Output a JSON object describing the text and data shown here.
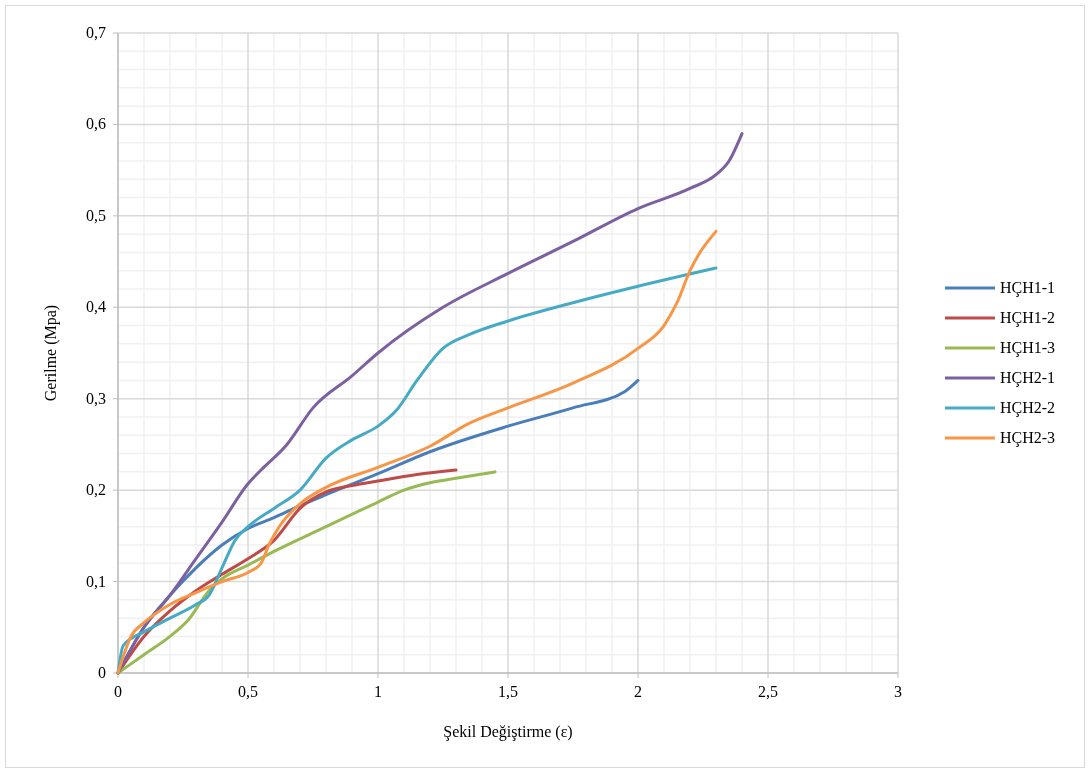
{
  "chart_data": {
    "type": "line",
    "xlabel": "Şekil Değiştirme (ε)",
    "ylabel": "Gerilme (Mpa)",
    "xlim": [
      0,
      3
    ],
    "xticks": [
      0,
      {
        "value": 0.5,
        "label": "0,5"
      },
      1,
      {
        "value": 1.5,
        "label": "1,5"
      },
      2,
      {
        "value": 2.5,
        "label": "2,5"
      },
      3
    ],
    "ylim": [
      0,
      0.7
    ],
    "yticks": [
      0,
      {
        "value": 0.1,
        "label": "0,1"
      },
      {
        "value": 0.2,
        "label": "0,2"
      },
      {
        "value": 0.3,
        "label": "0,3"
      },
      {
        "value": 0.4,
        "label": "0,4"
      },
      {
        "value": 0.5,
        "label": "0,5"
      },
      {
        "value": 0.6,
        "label": "0,6"
      },
      {
        "value": 0.7,
        "label": "0,7"
      }
    ],
    "grid": true,
    "legend": "right",
    "marker": "none",
    "line_style": "solid",
    "series": [
      {
        "name": "HÇH1-1",
        "color": "#4a7ebb",
        "x": [
          0,
          0.1,
          0.2,
          0.3,
          0.4,
          0.5,
          0.6,
          0.7,
          0.8,
          1,
          1.2,
          1.5,
          1.75,
          1.95,
          2
        ],
        "values": [
          0,
          0.05,
          0.085,
          0.115,
          0.14,
          0.158,
          0.17,
          0.183,
          0.195,
          0.218,
          0.242,
          0.27,
          0.29,
          0.308,
          0.32
        ]
      },
      {
        "name": "HÇH1-2",
        "color": "#be4b48",
        "x": [
          0,
          0.1,
          0.2,
          0.3,
          0.4,
          0.5,
          0.6,
          0.7,
          0.8,
          0.9,
          1,
          1.15,
          1.3
        ],
        "values": [
          0,
          0.04,
          0.068,
          0.09,
          0.108,
          0.125,
          0.145,
          0.18,
          0.198,
          0.205,
          0.21,
          0.217,
          0.222
        ]
      },
      {
        "name": "HÇH1-3",
        "color": "#98b954",
        "x": [
          0,
          0.1,
          0.2,
          0.27,
          0.35,
          0.4,
          0.5,
          0.6,
          0.8,
          1,
          1.1,
          1.2,
          1.3,
          1.45
        ],
        "values": [
          0,
          0.02,
          0.04,
          0.058,
          0.09,
          0.103,
          0.118,
          0.133,
          0.16,
          0.187,
          0.2,
          0.208,
          0.213,
          0.22
        ]
      },
      {
        "name": "HÇH2-1",
        "color": "#7d60a0",
        "x": [
          0,
          0.1,
          0.2,
          0.3,
          0.4,
          0.5,
          0.55,
          0.65,
          0.75,
          0.9,
          1,
          1.25,
          1.5,
          1.75,
          2,
          2.2,
          2.3,
          2.35,
          2.4
        ],
        "values": [
          0,
          0.05,
          0.085,
          0.125,
          0.165,
          0.207,
          0.222,
          0.25,
          0.29,
          0.325,
          0.35,
          0.4,
          0.437,
          0.472,
          0.508,
          0.53,
          0.545,
          0.56,
          0.59
        ]
      },
      {
        "name": "HÇH2-2",
        "color": "#46aac5",
        "x": [
          0,
          0.02,
          0.1,
          0.2,
          0.3,
          0.35,
          0.4,
          0.45,
          0.5,
          0.6,
          0.7,
          0.8,
          0.9,
          1,
          1.07,
          1.15,
          1.25,
          1.35,
          1.5,
          1.75,
          2,
          2.3
        ],
        "values": [
          0,
          0.03,
          0.045,
          0.06,
          0.075,
          0.085,
          0.115,
          0.145,
          0.16,
          0.18,
          0.2,
          0.235,
          0.255,
          0.27,
          0.287,
          0.32,
          0.355,
          0.37,
          0.385,
          0.405,
          0.423,
          0.443
        ]
      },
      {
        "name": "HÇH2-3",
        "color": "#f79646",
        "x": [
          0,
          0.05,
          0.1,
          0.2,
          0.3,
          0.4,
          0.5,
          0.55,
          0.58,
          0.62,
          0.7,
          0.8,
          1,
          1.2,
          1.35,
          1.5,
          1.75,
          2,
          2.1,
          2.15,
          2.2,
          2.3
        ],
        "values": [
          0,
          0.04,
          0.055,
          0.075,
          0.088,
          0.1,
          0.11,
          0.12,
          0.14,
          0.16,
          0.185,
          0.203,
          0.225,
          0.248,
          0.273,
          0.29,
          0.317,
          0.355,
          0.38,
          0.405,
          0.44,
          0.483
        ]
      }
    ]
  }
}
